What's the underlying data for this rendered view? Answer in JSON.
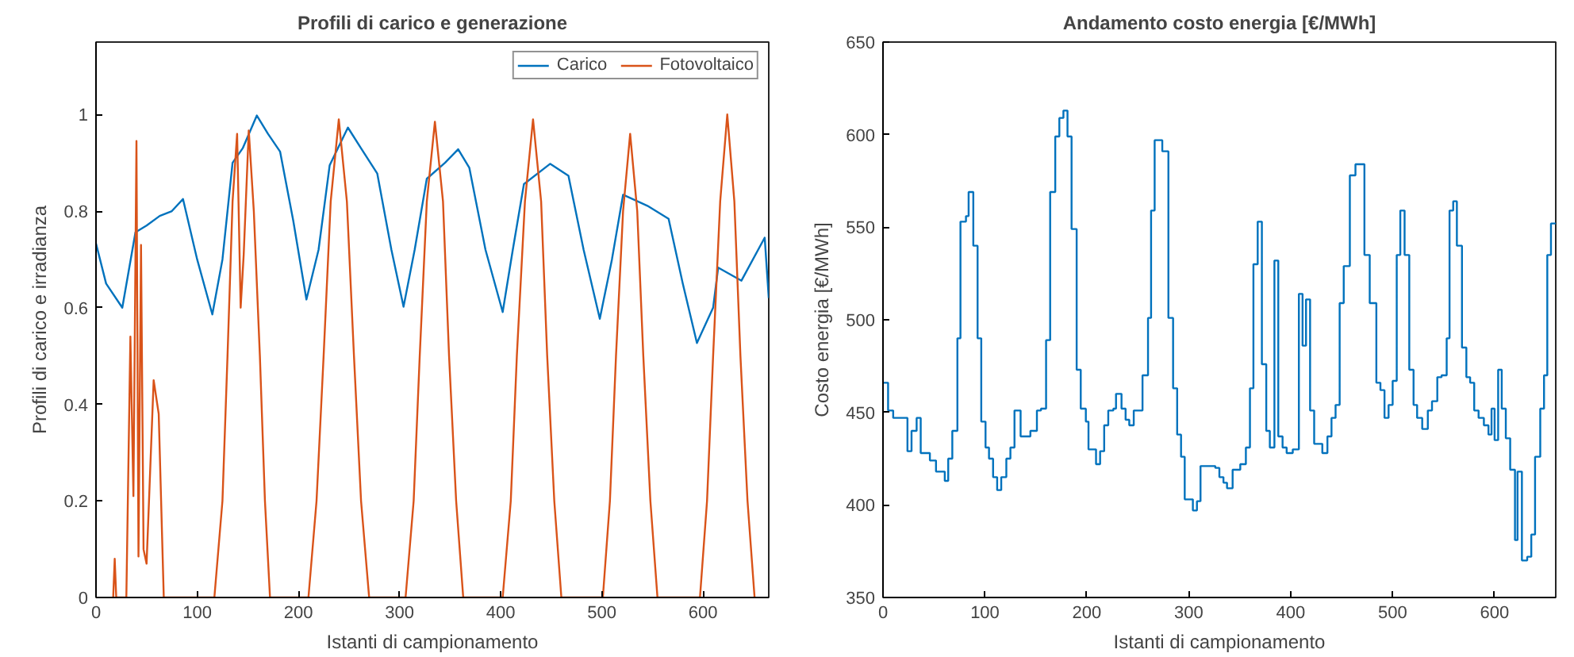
{
  "chart_data": [
    {
      "type": "line",
      "title": "Profili di carico e generazione",
      "xlabel": "Istanti di campionamento",
      "ylabel": "Profili di carico e irradianza",
      "xlim": [
        0,
        665
      ],
      "xticks": [
        0,
        100,
        200,
        300,
        400,
        500,
        600
      ],
      "ylim": [
        0,
        1.15
      ],
      "yticks": [
        0,
        0.2,
        0.4,
        0.6,
        0.8,
        1
      ],
      "grid": false,
      "legend": "top right",
      "series": [
        {
          "name": "Carico",
          "color": "#0072bd",
          "x": [
            0,
            10,
            26,
            39,
            50,
            63,
            75,
            86,
            100,
            115,
            125,
            135,
            145,
            159,
            170,
            182,
            195,
            208,
            220,
            231,
            249,
            262,
            278,
            292,
            304,
            315,
            327,
            345,
            358,
            369,
            385,
            402,
            412,
            423,
            449,
            467,
            482,
            498,
            510,
            521,
            545,
            566,
            580,
            594,
            610,
            615,
            638,
            661,
            665
          ],
          "values": [
            0.733,
            0.65,
            0.6,
            0.756,
            0.77,
            0.79,
            0.8,
            0.825,
            0.7,
            0.586,
            0.7,
            0.9,
            0.93,
            0.998,
            0.96,
            0.923,
            0.78,
            0.617,
            0.72,
            0.895,
            0.973,
            0.93,
            0.878,
            0.72,
            0.602,
            0.72,
            0.867,
            0.9,
            0.928,
            0.89,
            0.72,
            0.591,
            0.72,
            0.856,
            0.898,
            0.873,
            0.72,
            0.577,
            0.7,
            0.834,
            0.811,
            0.784,
            0.65,
            0.527,
            0.6,
            0.683,
            0.656,
            0.745,
            0.62
          ]
        },
        {
          "name": "Fotovoltaico",
          "color": "#d95319",
          "x": [
            17,
            18.5,
            20,
            30,
            34,
            37,
            40,
            42,
            44.5,
            47,
            50,
            57,
            62,
            67,
            117,
            125,
            130,
            135,
            139.5,
            143,
            146,
            151,
            156,
            162,
            167,
            172,
            210,
            218,
            225,
            232,
            240,
            248,
            255,
            262,
            270,
            306,
            314,
            320,
            327,
            335,
            343,
            349,
            356,
            363,
            402,
            410,
            416,
            424,
            432,
            440,
            446,
            453,
            460,
            501,
            508,
            514,
            521,
            528,
            535,
            541,
            548,
            555,
            597,
            604,
            610,
            617,
            624,
            631,
            637,
            644,
            651
          ],
          "values": [
            0,
            0.08,
            0,
            0,
            0.54,
            0.21,
            0.945,
            0.085,
            0.73,
            0.1,
            0.07,
            0.45,
            0.38,
            0,
            0,
            0.2,
            0.5,
            0.82,
            0.96,
            0.6,
            0.71,
            0.967,
            0.8,
            0.5,
            0.2,
            0,
            0,
            0.2,
            0.5,
            0.82,
            0.99,
            0.82,
            0.5,
            0.2,
            0,
            0,
            0.2,
            0.5,
            0.82,
            0.985,
            0.82,
            0.5,
            0.2,
            0,
            0,
            0.2,
            0.5,
            0.82,
            0.99,
            0.82,
            0.5,
            0.2,
            0,
            0,
            0.2,
            0.5,
            0.8,
            0.96,
            0.8,
            0.5,
            0.2,
            0,
            0,
            0.2,
            0.5,
            0.82,
            1.0,
            0.82,
            0.5,
            0.2,
            0
          ]
        }
      ]
    },
    {
      "type": "step",
      "title": "Andamento costo energia [€/MWh]",
      "xlabel": "Istanti di campionamento",
      "ylabel": "Costo energia [€/MWh]",
      "xlim": [
        0,
        660
      ],
      "xticks": [
        0,
        100,
        200,
        300,
        400,
        500,
        600
      ],
      "ylim": [
        350,
        650
      ],
      "yticks": [
        350,
        400,
        450,
        500,
        550,
        600,
        650
      ],
      "grid": false,
      "series": [
        {
          "color": "#0072bd",
          "x": [
            0,
            5,
            10,
            24,
            28,
            33,
            37,
            46,
            52,
            60.6,
            64,
            68,
            73,
            76,
            81.4,
            84,
            88.6,
            92.8,
            96.4,
            100.6,
            104,
            108,
            112,
            116,
            121,
            125,
            129,
            135,
            144.6,
            151,
            155,
            160,
            164,
            169,
            173,
            177,
            181,
            185,
            190,
            194,
            199,
            201.6,
            209,
            213,
            217,
            221,
            226,
            228.6,
            234,
            238,
            241.6,
            246,
            254.6,
            260,
            263,
            266.5,
            274,
            280,
            284.6,
            288.6,
            292.4,
            296,
            304,
            308,
            311.5,
            326,
            330,
            334,
            337.5,
            343,
            350.5,
            356,
            360,
            363.4,
            367.6,
            371.7,
            376,
            379.5,
            384,
            387.8,
            392,
            396,
            402,
            408,
            411.6,
            415,
            419,
            423,
            431,
            436,
            440,
            444,
            448,
            452,
            458,
            463.5,
            472.3,
            477.5,
            484,
            488,
            492,
            496,
            500,
            504,
            507.5,
            511.7,
            516.3,
            520.5,
            524,
            529,
            534.5,
            538.6,
            543.8,
            548,
            553,
            555.8,
            559.4,
            563,
            568,
            572.3,
            576,
            580,
            584.3,
            589.5,
            594,
            597,
            600,
            603.5,
            607,
            611,
            615.3,
            620,
            622.5,
            626.8,
            632,
            636,
            639.7,
            644.8,
            648.5,
            651.7,
            655.3,
            660
          ],
          "values": [
            466,
            451,
            447,
            429,
            440,
            447,
            428,
            424,
            418,
            413,
            425,
            440,
            490,
            553,
            556,
            569,
            540,
            490,
            445,
            431,
            425,
            415,
            408,
            415,
            425,
            431,
            451,
            437,
            440,
            451,
            452,
            489,
            569,
            599,
            609,
            613,
            599,
            549,
            473,
            452,
            445,
            430,
            422,
            429,
            443,
            451,
            452,
            460,
            452,
            446,
            443,
            451,
            470,
            501,
            559,
            597,
            591,
            501,
            463,
            438,
            426,
            403,
            397,
            402,
            421,
            420,
            415,
            412,
            409,
            419,
            422,
            431,
            463,
            530,
            553,
            476,
            440,
            431,
            532,
            437,
            431,
            428,
            430,
            514,
            486,
            511,
            451,
            433,
            428,
            437,
            447,
            454,
            509,
            529,
            578,
            584,
            535,
            509,
            466,
            462,
            447,
            454,
            467,
            535,
            559,
            535,
            473,
            454,
            447,
            441,
            451,
            456,
            469,
            470,
            490,
            559,
            564,
            540,
            485,
            469,
            466,
            451,
            447,
            443,
            438,
            452,
            435,
            473,
            452,
            436,
            419,
            381,
            418,
            370,
            372,
            384,
            426,
            452,
            470,
            535,
            552,
            552
          ]
        }
      ]
    }
  ]
}
